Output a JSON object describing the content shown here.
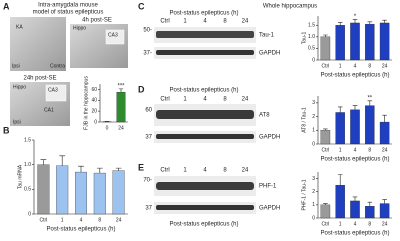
{
  "figure": {
    "panel_labels": [
      "A",
      "B",
      "C",
      "D",
      "E"
    ],
    "a": {
      "title_lines": [
        "Intra-amygdala mouse",
        "model of status epilepticus"
      ],
      "image_labels": [
        "KA",
        "Ipsi",
        "Contra",
        "Hippo",
        "4h post-SE",
        "CA3",
        "24h post-SE",
        "Hippo",
        "CA3",
        "CA1",
        "Ipsi"
      ]
    },
    "c": {
      "title": "Whole hippocampus",
      "heading": "Post-status epilepticus (h)",
      "lanes": [
        "Ctrl",
        "1",
        "4",
        "8",
        "24"
      ],
      "markers": [
        "50-",
        "37-"
      ],
      "bands": [
        "Tau-1",
        "GAPDH"
      ]
    },
    "d": {
      "heading": "Post-status epilepticus (h)",
      "lanes": [
        "Ctrl",
        "1",
        "4",
        "8",
        "24"
      ],
      "markers": [
        "60",
        "37"
      ],
      "bands": [
        "AT8",
        "GAPDH"
      ]
    },
    "e": {
      "heading": "Post-status epilepticus (h)",
      "lanes": [
        "Ctrl",
        "1",
        "4",
        "8",
        "24"
      ],
      "markers": [
        "70-",
        "37"
      ],
      "bands": [
        "PHF-1",
        "GAPDH"
      ]
    }
  },
  "chart_data": [
    {
      "type": "bar",
      "y_label": "FJB in the hippocampus",
      "categories": [
        "0",
        "24"
      ],
      "values": [
        0.5,
        55
      ],
      "errors": [
        0.5,
        6
      ],
      "colors": [
        "#2e8b2e",
        "#2e8b2e"
      ],
      "significance": [
        null,
        "***"
      ],
      "ylim": [
        0,
        70
      ],
      "yticks": [
        0,
        20,
        40,
        60
      ]
    },
    {
      "type": "bar",
      "y_label": "Tau mRNA",
      "x_label": "Post-status epilepticus (h)",
      "categories": [
        "Ctrl",
        "1",
        "4",
        "8",
        "24"
      ],
      "values": [
        1.0,
        0.98,
        0.85,
        0.83,
        0.88
      ],
      "errors": [
        0.1,
        0.2,
        0.12,
        0.1,
        0.05
      ],
      "colors": [
        "#9a9a9a",
        "#9cc3f0",
        "#9cc3f0",
        "#9cc3f0",
        "#9cc3f0"
      ],
      "significance": [
        null,
        null,
        null,
        null,
        null
      ],
      "ylim": [
        0,
        1.5
      ],
      "yticks": [
        0,
        0.5,
        {
          "value": 1.0,
          "label": "1.0"
        },
        1.5
      ]
    },
    {
      "type": "bar",
      "y_label": "Tau-1",
      "x_label": "Post-status epilepticus (h)",
      "categories": [
        "Ctrl",
        "1",
        "4",
        "8",
        "24"
      ],
      "values": [
        1.0,
        1.5,
        1.6,
        1.55,
        1.6
      ],
      "errors": [
        0.08,
        0.12,
        0.15,
        0.1,
        0.12
      ],
      "colors": [
        "#9a9a9a",
        "#1f3fbf",
        "#1f3fbf",
        "#1f3fbf",
        "#1f3fbf"
      ],
      "significance": [
        null,
        null,
        "*",
        null,
        null
      ],
      "ylim": [
        0,
        1.9
      ],
      "yticks": [
        0,
        0.5,
        {
          "value": 1.0,
          "label": "1.0"
        },
        1.5
      ]
    },
    {
      "type": "bar",
      "y_label": "AT8 / Tau-1",
      "x_label": "Post-status epilepticus (h)",
      "categories": [
        "Ctrl",
        "1",
        "4",
        "8",
        "24"
      ],
      "values": [
        1.0,
        2.3,
        2.5,
        2.8,
        1.6
      ],
      "errors": [
        0.1,
        0.4,
        0.3,
        0.35,
        0.5
      ],
      "colors": [
        "#9a9a9a",
        "#1f3fbf",
        "#1f3fbf",
        "#1f3fbf",
        "#1f3fbf"
      ],
      "significance": [
        null,
        null,
        null,
        "**",
        null
      ],
      "ylim": [
        0,
        3.5
      ],
      "yticks": [
        0,
        1,
        2,
        3
      ]
    },
    {
      "type": "bar",
      "y_label": "PHF-1 / Tau-1",
      "x_label": "Post-status epilepticus (h)",
      "categories": [
        "Ctrl",
        "1",
        "4",
        "8",
        "24"
      ],
      "values": [
        1.0,
        2.5,
        1.3,
        0.9,
        1.1
      ],
      "errors": [
        0.1,
        0.8,
        0.3,
        0.3,
        0.3
      ],
      "colors": [
        "#9a9a9a",
        "#1f3fbf",
        "#1f3fbf",
        "#1f3fbf",
        "#1f3fbf"
      ],
      "significance": [
        null,
        null,
        null,
        null,
        null
      ],
      "ylim": [
        0,
        3.5
      ],
      "yticks": [
        0,
        1,
        2,
        3
      ]
    }
  ]
}
